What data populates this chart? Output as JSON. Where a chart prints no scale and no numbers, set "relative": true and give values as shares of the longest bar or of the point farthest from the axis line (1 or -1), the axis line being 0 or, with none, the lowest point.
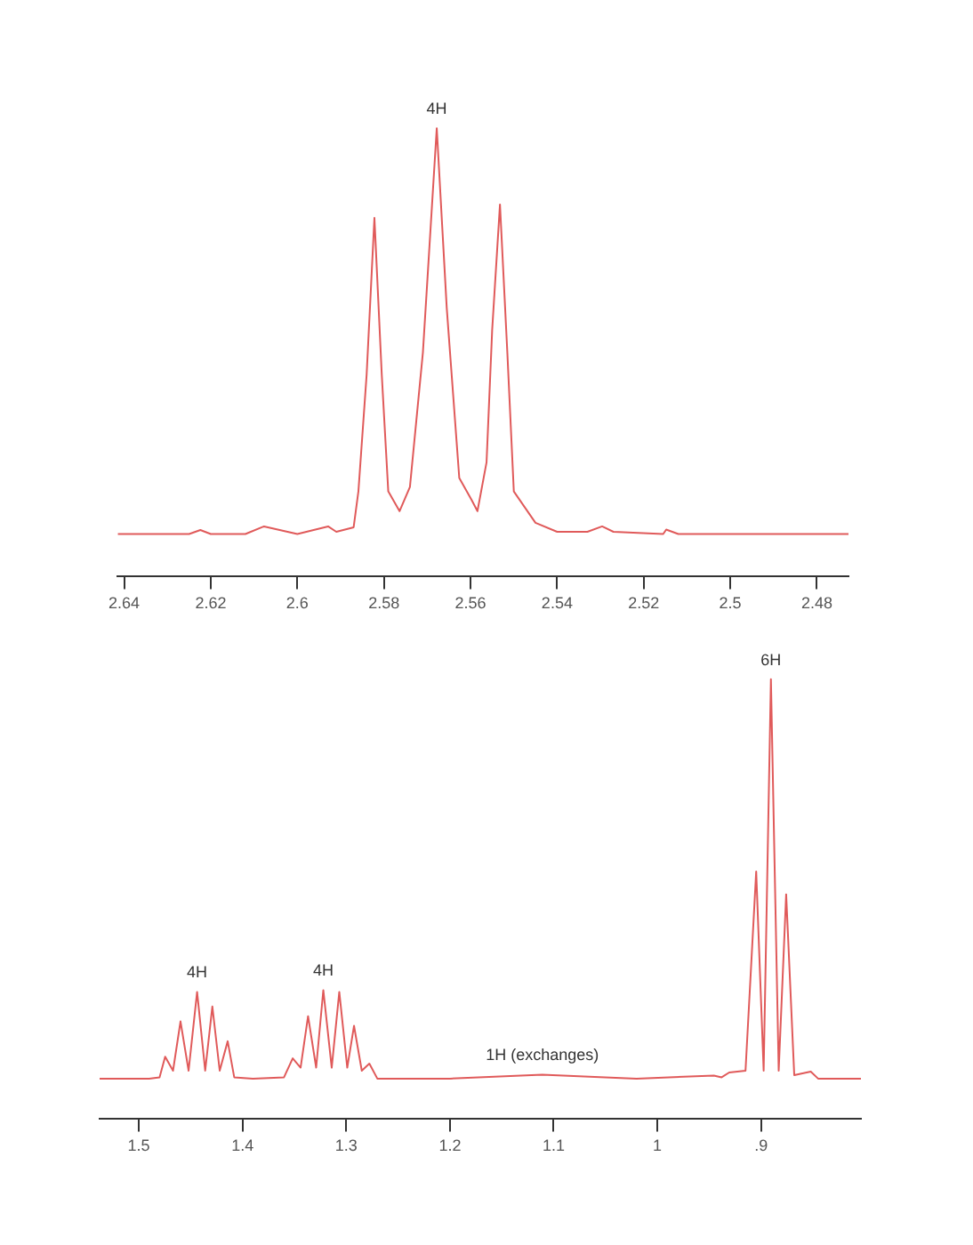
{
  "chart_data": [
    {
      "type": "line",
      "relative": true,
      "marker": "none",
      "xlim": [
        2.6415,
        2.4727
      ],
      "xticks": [
        2.64,
        2.62,
        2.6,
        2.58,
        2.56,
        2.54,
        2.52,
        2.5,
        2.48
      ],
      "x": [
        2.6415,
        2.625,
        2.6224,
        2.62,
        2.612,
        2.6077,
        2.6,
        2.5929,
        2.591,
        2.587,
        2.5859,
        2.584,
        2.5822,
        2.5805,
        2.579,
        2.5764,
        2.574,
        2.571,
        2.5678,
        2.5655,
        2.5626,
        2.5598,
        2.5584,
        2.5563,
        2.555,
        2.5532,
        2.5515,
        2.55,
        2.545,
        2.54,
        2.533,
        2.5296,
        2.527,
        2.5155,
        2.5148,
        2.512,
        2.4727
      ],
      "series": [
        {
          "color": "#e05a5a",
          "values": [
            0.095,
            0.095,
            0.104,
            0.095,
            0.095,
            0.112,
            0.095,
            0.112,
            0.1,
            0.11,
            0.19,
            0.45,
            0.8,
            0.45,
            0.19,
            0.146,
            0.2,
            0.5,
            1.0,
            0.6,
            0.22,
            0.172,
            0.146,
            0.255,
            0.55,
            0.83,
            0.5,
            0.19,
            0.12,
            0.1,
            0.1,
            0.112,
            0.1,
            0.095,
            0.105,
            0.095,
            0.095
          ]
        }
      ],
      "annotations": [
        {
          "text": "4H",
          "x": 2.5678,
          "y": 1.0
        }
      ]
    },
    {
      "type": "line",
      "relative": true,
      "marker": "none",
      "xlim": [
        1.5378,
        0.8037
      ],
      "xticks": [
        1.5,
        1.4,
        1.3,
        1.2,
        1.1,
        1,
        {
          "value": 0.9,
          "label": ".9"
        }
      ],
      "x": [
        1.5378,
        1.49,
        1.48,
        1.4746,
        1.467,
        1.4598,
        1.452,
        1.4438,
        1.436,
        1.4291,
        1.422,
        1.4143,
        1.408,
        1.39,
        1.36,
        1.3516,
        1.344,
        1.3368,
        1.329,
        1.3221,
        1.314,
        1.3067,
        1.299,
        1.2925,
        1.285,
        1.2777,
        1.27,
        1.2,
        1.111,
        1.02,
        0.9455,
        0.938,
        0.9307,
        0.915,
        0.9047,
        0.8975,
        0.8905,
        0.883,
        0.8758,
        0.868,
        0.8521,
        0.845,
        0.8037
      ],
      "series": [
        {
          "color": "#e05a5a",
          "values": [
            0.092,
            0.092,
            0.095,
            0.142,
            0.11,
            0.222,
            0.11,
            0.289,
            0.11,
            0.256,
            0.11,
            0.177,
            0.095,
            0.092,
            0.095,
            0.138,
            0.117,
            0.234,
            0.117,
            0.293,
            0.117,
            0.289,
            0.117,
            0.212,
            0.11,
            0.126,
            0.092,
            0.092,
            0.101,
            0.092,
            0.099,
            0.095,
            0.106,
            0.11,
            0.563,
            0.11,
            1.0,
            0.11,
            0.511,
            0.1,
            0.108,
            0.092,
            0.092
          ]
        }
      ],
      "annotations": [
        {
          "text": "4H",
          "x": 1.4438,
          "y": 0.289
        },
        {
          "text": "4H",
          "x": 1.3221,
          "y": 0.293
        },
        {
          "text": "1H (exchanges)",
          "x": 1.111,
          "y": 0.101
        },
        {
          "text": "6H",
          "x": 0.8905,
          "y": 1.0
        }
      ]
    }
  ]
}
